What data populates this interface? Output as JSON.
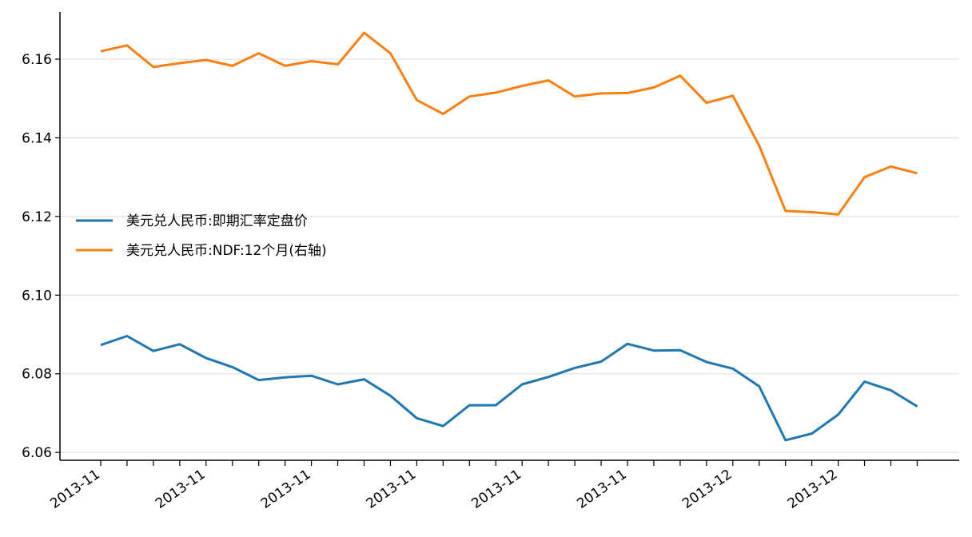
{
  "chart_data": {
    "type": "line",
    "title": "",
    "xlabel": "",
    "ylabel": "",
    "ylim": [
      6.058,
      6.172
    ],
    "yticks": [
      6.06,
      6.08,
      6.1,
      6.12,
      6.14,
      6.16
    ],
    "ytick_labels": [
      "6.06",
      "6.08",
      "6.10",
      "6.12",
      "6.14",
      "6.16"
    ],
    "xtick_labels": [
      "2013-11",
      "2013-11",
      "2013-11",
      "2013-11",
      "2013-11",
      "2013-11",
      "2013-12",
      "2013-12"
    ],
    "xtick_every": 4,
    "grid": "horizontal",
    "legend": "center-left",
    "colors": {
      "series1": "#1f77b4",
      "series2": "#ff7f0e",
      "grid": "#e0e0e0",
      "axis": "#000000"
    },
    "series": [
      {
        "name": "美元兑人民币:即期汇率定盘价",
        "values": [
          6.0873,
          6.0896,
          6.0858,
          6.0875,
          6.084,
          6.0817,
          6.0784,
          6.0791,
          6.0795,
          6.0773,
          6.0786,
          6.0744,
          6.0687,
          6.0667,
          6.072,
          6.072,
          6.0773,
          6.0792,
          6.0815,
          6.0831,
          6.0876,
          6.0859,
          6.086,
          6.083,
          6.0813,
          6.0768,
          6.0631,
          6.0648,
          6.0696,
          6.078,
          6.0758,
          6.0717
        ]
      },
      {
        "name": "美元兑人民币:NDF:12个月(右轴)",
        "values": [
          6.162,
          6.1635,
          6.158,
          6.159,
          6.1598,
          6.1583,
          6.1615,
          6.1583,
          6.1595,
          6.1587,
          6.1667,
          6.1615,
          6.1496,
          6.1461,
          6.1505,
          6.1515,
          6.1532,
          6.1546,
          6.1505,
          6.1513,
          6.1514,
          6.1528,
          6.1558,
          6.1489,
          6.1507,
          6.138,
          6.1214,
          6.1211,
          6.1205,
          6.13,
          6.1327,
          6.131
        ]
      }
    ]
  }
}
